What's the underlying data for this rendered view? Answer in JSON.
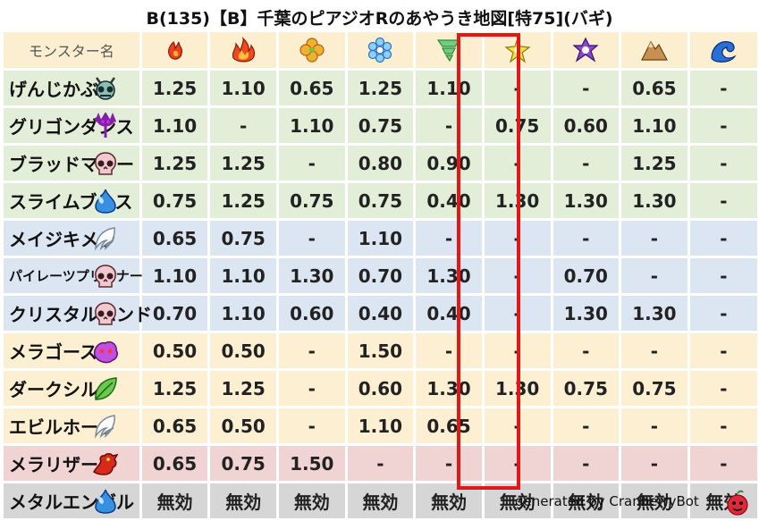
{
  "title": "B(135)【B】千葉のピアジオRのあやうき地図[特75](バギ)",
  "header_label": "モンスター名",
  "footer": "generated by CranberryBot",
  "elements": [
    {
      "icon": "fire-small-icon",
      "color": "#e8401a"
    },
    {
      "icon": "fire-icon",
      "color": "#e8401a"
    },
    {
      "icon": "clover-icon",
      "color": "#e8a21a"
    },
    {
      "icon": "ice-crystal-icon",
      "color": "#4a9ee8"
    },
    {
      "icon": "tornado-icon",
      "color": "#5cbf6e"
    },
    {
      "icon": "lightning-star-icon",
      "color": "#d6c020"
    },
    {
      "icon": "darkness-swirl-icon",
      "color": "#7a3ab8"
    },
    {
      "icon": "mountain-icon",
      "color": "#b07a3a"
    },
    {
      "icon": "wave-icon",
      "color": "#2a6ed8"
    }
  ],
  "rows": [
    {
      "name": "げんじかぶと",
      "bg": "green",
      "icon": "insect-icon",
      "values": [
        [
          "1.25",
          "red"
        ],
        [
          "1.10",
          "orange"
        ],
        [
          "0.65",
          "navy"
        ],
        [
          "1.25",
          "red"
        ],
        [
          "1.10",
          "orange"
        ],
        [
          "-",
          "dash"
        ],
        [
          "-",
          "dash"
        ],
        [
          "0.65",
          "navy"
        ],
        [
          "-",
          "dash"
        ]
      ]
    },
    {
      "name": "グリゴンダンス",
      "bg": "green",
      "icon": "trident-icon",
      "values": [
        [
          "1.10",
          "orange"
        ],
        [
          "-",
          "dash"
        ],
        [
          "1.10",
          "orange"
        ],
        [
          "0.75",
          "blue"
        ],
        [
          "-",
          "dash"
        ],
        [
          "0.75",
          "blue"
        ],
        [
          "0.60",
          "navy"
        ],
        [
          "1.10",
          "orange"
        ],
        [
          "-",
          "dash"
        ]
      ]
    },
    {
      "name": "ブラッドマミー",
      "bg": "green",
      "icon": "skull-icon",
      "values": [
        [
          "1.25",
          "red"
        ],
        [
          "1.25",
          "red"
        ],
        [
          "-",
          "dash"
        ],
        [
          "0.80",
          "blue"
        ],
        [
          "0.90",
          "blue"
        ],
        [
          "-",
          "dash"
        ],
        [
          "-",
          "dash"
        ],
        [
          "1.25",
          "red"
        ],
        [
          "-",
          "dash"
        ]
      ]
    },
    {
      "name": "スライムブレス",
      "bg": "green",
      "icon": "slime-icon",
      "values": [
        [
          "0.75",
          "blue"
        ],
        [
          "1.25",
          "red"
        ],
        [
          "0.75",
          "blue"
        ],
        [
          "0.75",
          "blue"
        ],
        [
          "0.40",
          "navy"
        ],
        [
          "1.30",
          "red"
        ],
        [
          "1.30",
          "red"
        ],
        [
          "1.30",
          "red"
        ],
        [
          "-",
          "dash"
        ]
      ]
    },
    {
      "name": "メイジキメラ",
      "bg": "blue",
      "icon": "wing-icon",
      "values": [
        [
          "0.65",
          "navy"
        ],
        [
          "0.75",
          "navy"
        ],
        [
          "-",
          "dash"
        ],
        [
          "1.10",
          "orange"
        ],
        [
          "-",
          "dash"
        ],
        [
          "-",
          "dash"
        ],
        [
          "-",
          "dash"
        ],
        [
          "-",
          "dash"
        ],
        [
          "-",
          "dash"
        ]
      ]
    },
    {
      "name": "パイレーツプリズナー",
      "bg": "blue",
      "icon": "skull-icon",
      "small": true,
      "values": [
        [
          "1.10",
          "orange"
        ],
        [
          "1.10",
          "orange"
        ],
        [
          "1.30",
          "red"
        ],
        [
          "0.70",
          "navy"
        ],
        [
          "1.30",
          "red"
        ],
        [
          "-",
          "dash"
        ],
        [
          "0.70",
          "navy"
        ],
        [
          "-",
          "dash"
        ],
        [
          "-",
          "dash"
        ]
      ]
    },
    {
      "name": "クリスタルハンド",
      "bg": "blue",
      "icon": "skull-icon",
      "values": [
        [
          "0.70",
          "navy"
        ],
        [
          "1.10",
          "orange"
        ],
        [
          "0.60",
          "navy"
        ],
        [
          "0.40",
          "navy"
        ],
        [
          "0.40",
          "navy"
        ],
        [
          "-",
          "dash"
        ],
        [
          "1.30",
          "red"
        ],
        [
          "1.30",
          "red"
        ],
        [
          "-",
          "dash"
        ]
      ]
    },
    {
      "name": "メラゴースト",
      "bg": "yellow",
      "icon": "ghost-icon",
      "values": [
        [
          "0.50",
          "navy"
        ],
        [
          "0.50",
          "navy"
        ],
        [
          "-",
          "dash"
        ],
        [
          "1.50",
          "red"
        ],
        [
          "-",
          "dash"
        ],
        [
          "-",
          "dash"
        ],
        [
          "-",
          "dash"
        ],
        [
          "-",
          "dash"
        ],
        [
          "-",
          "dash"
        ]
      ]
    },
    {
      "name": "ダークシルフ",
      "bg": "yellow",
      "icon": "leaf-icon",
      "values": [
        [
          "1.25",
          "red"
        ],
        [
          "1.25",
          "red"
        ],
        [
          "-",
          "dash"
        ],
        [
          "0.60",
          "navy"
        ],
        [
          "1.30",
          "red"
        ],
        [
          "1.30",
          "red"
        ],
        [
          "0.75",
          "blue"
        ],
        [
          "0.75",
          "blue"
        ],
        [
          "-",
          "dash"
        ]
      ]
    },
    {
      "name": "エビルホーク",
      "bg": "yellow",
      "icon": "wing-icon",
      "values": [
        [
          "0.65",
          "navy"
        ],
        [
          "0.50",
          "navy"
        ],
        [
          "-",
          "dash"
        ],
        [
          "1.10",
          "orange"
        ],
        [
          "0.65",
          "navy"
        ],
        [
          "-",
          "dash"
        ],
        [
          "-",
          "dash"
        ],
        [
          "-",
          "dash"
        ],
        [
          "-",
          "dash"
        ]
      ]
    },
    {
      "name": "メラリザード",
      "bg": "pink",
      "icon": "dragon-icon",
      "values": [
        [
          "0.65",
          "navy"
        ],
        [
          "0.75",
          "blue"
        ],
        [
          "1.50",
          "red"
        ],
        [
          "-",
          "dash"
        ],
        [
          "-",
          "dash"
        ],
        [
          "-",
          "dash"
        ],
        [
          "-",
          "dash"
        ],
        [
          "-",
          "dash"
        ],
        [
          "-",
          "dash"
        ]
      ]
    },
    {
      "name": "メタルエンゼル",
      "bg": "gray",
      "icon": "slime-icon",
      "values": [
        [
          "無効",
          "none"
        ],
        [
          "無効",
          "none"
        ],
        [
          "無効",
          "none"
        ],
        [
          "無効",
          "none"
        ],
        [
          "無効",
          "none"
        ],
        [
          "無効",
          "none"
        ],
        [
          "無効",
          "none"
        ],
        [
          "無効",
          "none"
        ],
        [
          "無効",
          "none"
        ]
      ]
    }
  ]
}
